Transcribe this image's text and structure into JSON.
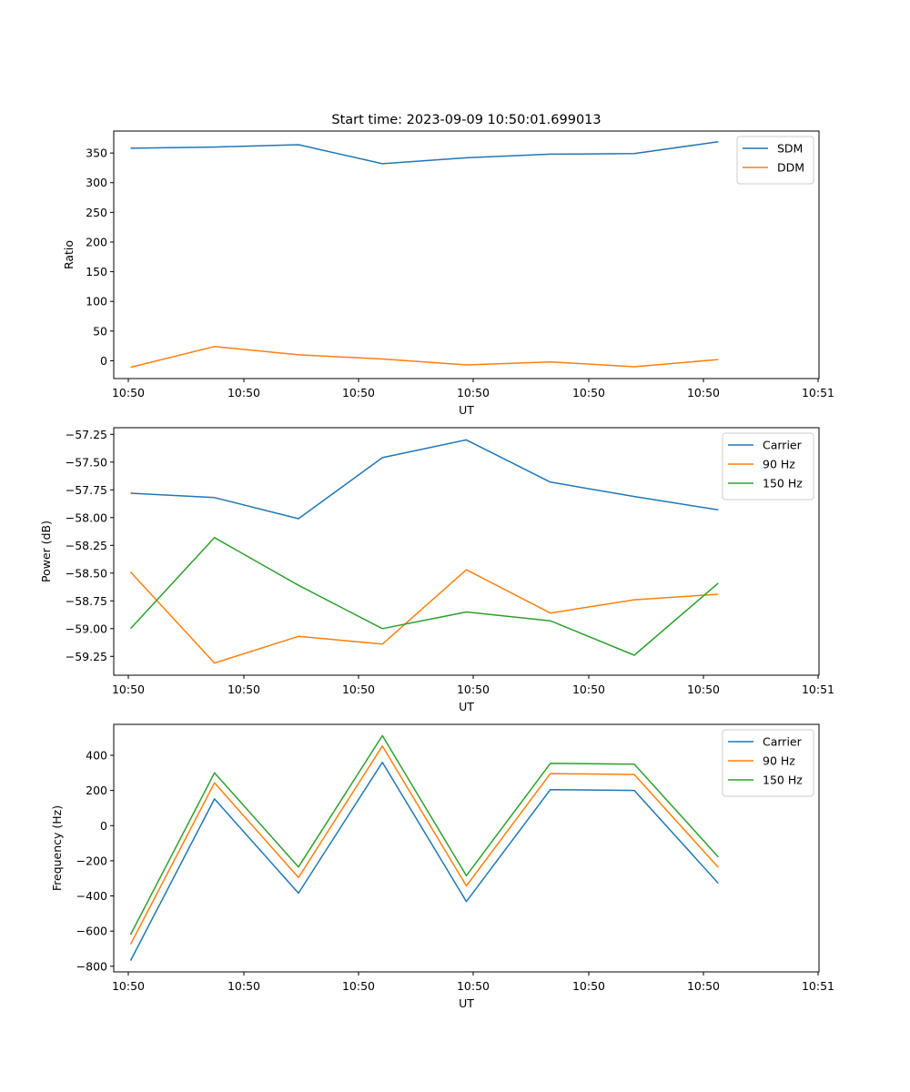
{
  "figure_title": "Start time: 2023-09-09 10:50:01.699013",
  "chart_data": [
    {
      "type": "line",
      "id": "ratio",
      "title": "Start time: 2023-09-09 10:50:01.699013",
      "xlabel": "UT",
      "ylabel": "Ratio",
      "xticks": [
        "10:50",
        "10:50",
        "10:50",
        "10:50",
        "10:50",
        "10:50",
        "10:50"
      ],
      "xtick_last": "10:51",
      "x": [
        1,
        2,
        3,
        4,
        5,
        6,
        7,
        8
      ],
      "xlim": [
        0.8,
        9.2
      ],
      "ylim": [
        -30,
        387
      ],
      "yticks": [
        0,
        50,
        100,
        150,
        200,
        250,
        300,
        350
      ],
      "series": [
        {
          "name": "SDM",
          "color": "#1f77b4",
          "values": [
            358,
            360,
            364,
            332,
            342,
            348,
            349,
            369
          ]
        },
        {
          "name": "DDM",
          "color": "#ff7f0e",
          "values": [
            -11,
            24,
            10,
            3,
            -7,
            -2,
            -10,
            2
          ]
        }
      ]
    },
    {
      "type": "line",
      "id": "power",
      "title": "",
      "xlabel": "UT",
      "ylabel": "Power (dB)",
      "xticks": [
        "10:50",
        "10:50",
        "10:50",
        "10:50",
        "10:50",
        "10:50",
        "10:50"
      ],
      "xtick_last": "10:51",
      "x": [
        1,
        2,
        3,
        4,
        5,
        6,
        7,
        8
      ],
      "xlim": [
        0.8,
        9.2
      ],
      "ylim": [
        -59.42,
        -57.19
      ],
      "yticks": [
        -59.25,
        -59.0,
        -58.75,
        -58.5,
        -58.25,
        -58.0,
        -57.75,
        -57.5,
        -57.25
      ],
      "ytick_labels": [
        "−59.25",
        "−59.00",
        "−58.75",
        "−58.50",
        "−58.25",
        "−58.00",
        "−57.75",
        "−57.50",
        "−57.25"
      ],
      "series": [
        {
          "name": "Carrier",
          "color": "#1f77b4",
          "values": [
            -57.78,
            -57.82,
            -58.01,
            -57.46,
            -57.3,
            -57.68,
            -57.81,
            -57.93
          ]
        },
        {
          "name": "90 Hz",
          "color": "#ff7f0e",
          "values": [
            -58.49,
            -59.31,
            -59.07,
            -59.14,
            -58.47,
            -58.86,
            -58.74,
            -58.69
          ]
        },
        {
          "name": "150 Hz",
          "color": "#2ca02c",
          "values": [
            -59.0,
            -58.18,
            -58.61,
            -59.0,
            -58.85,
            -58.93,
            -59.24,
            -58.59
          ]
        }
      ]
    },
    {
      "type": "line",
      "id": "frequency",
      "title": "",
      "xlabel": "UT",
      "ylabel": "Frequency (Hz)",
      "xticks": [
        "10:50",
        "10:50",
        "10:50",
        "10:50",
        "10:50",
        "10:50",
        "10:50"
      ],
      "xtick_last": "10:51",
      "x": [
        1,
        2,
        3,
        4,
        5,
        6,
        7,
        8
      ],
      "xlim": [
        0.8,
        9.2
      ],
      "ylim": [
        -832,
        576
      ],
      "yticks": [
        -800,
        -600,
        -400,
        -200,
        0,
        200,
        400
      ],
      "ytick_labels": [
        "−800",
        "−600",
        "−400",
        "−200",
        "0",
        "200",
        "400"
      ],
      "series": [
        {
          "name": "Carrier",
          "color": "#1f77b4",
          "values": [
            -768,
            152,
            -384,
            360,
            -432,
            205,
            200,
            -328
          ]
        },
        {
          "name": "90 Hz",
          "color": "#ff7f0e",
          "values": [
            -675,
            243,
            -295,
            453,
            -343,
            296,
            291,
            -237
          ]
        },
        {
          "name": "150 Hz",
          "color": "#2ca02c",
          "values": [
            -620,
            300,
            -235,
            512,
            -285,
            354,
            350,
            -178
          ]
        }
      ]
    }
  ]
}
